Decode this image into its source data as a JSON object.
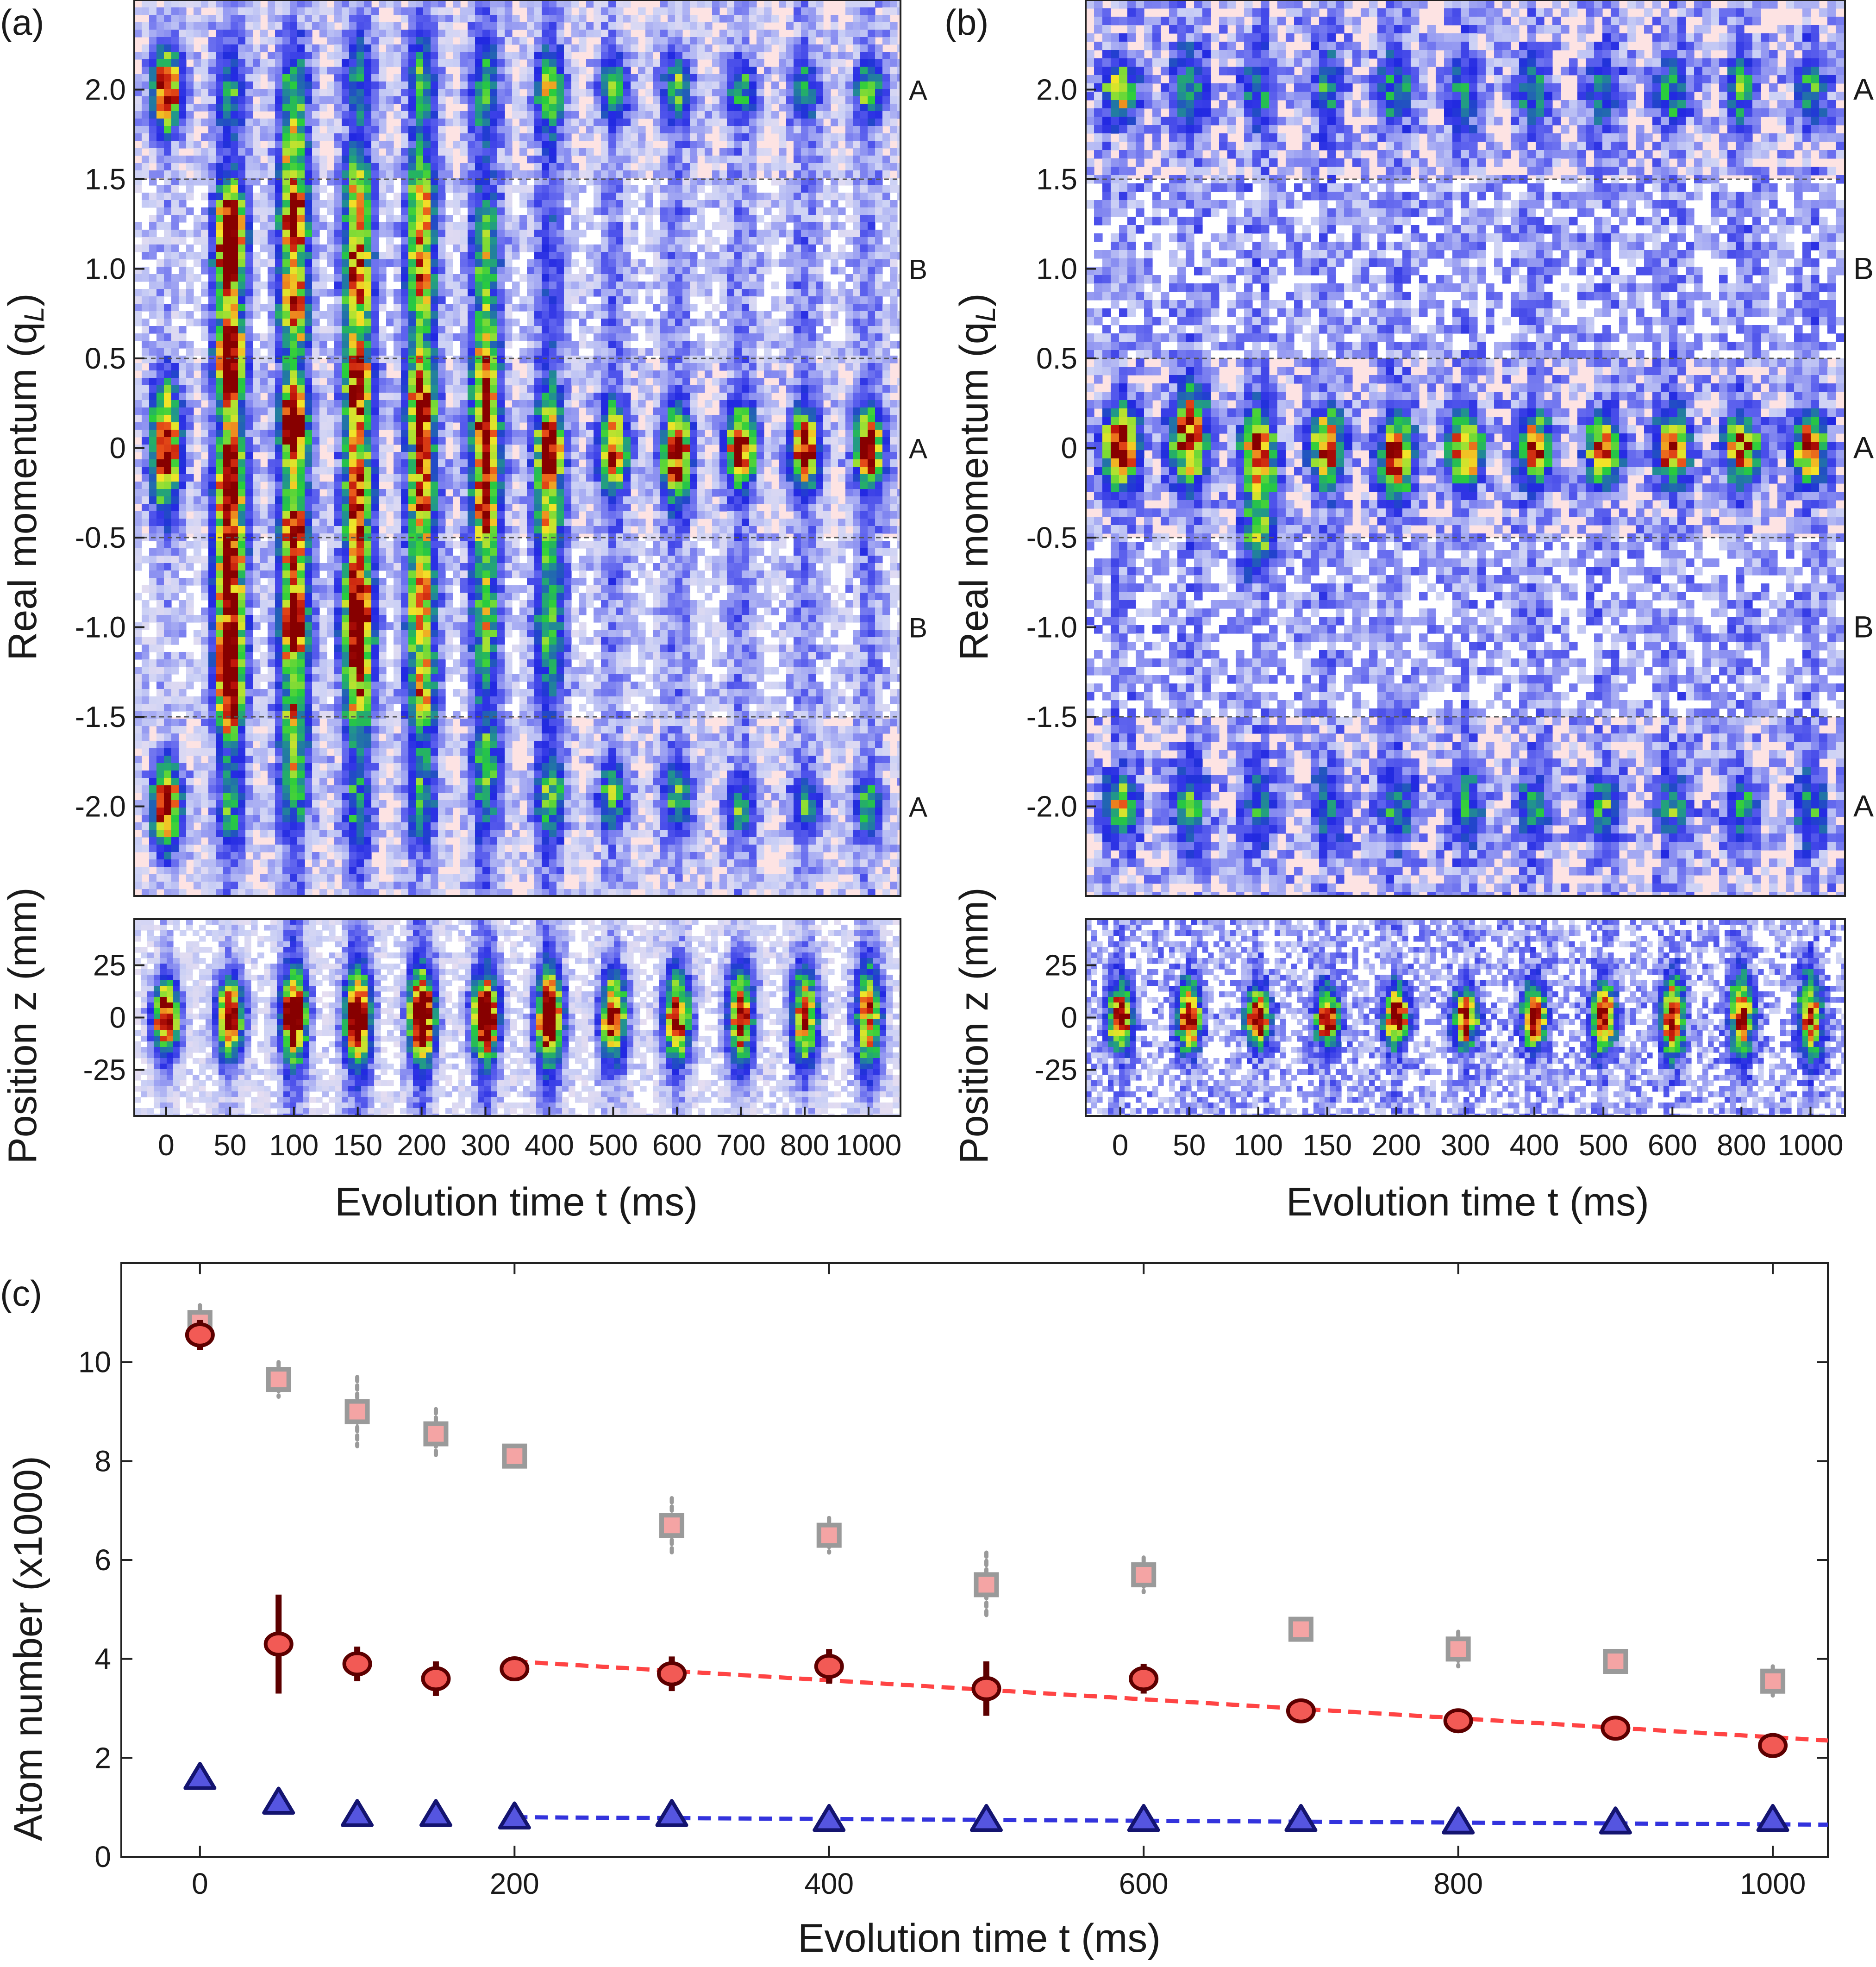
{
  "panels": {
    "a": {
      "label": "(a)"
    },
    "b": {
      "label": "(b)"
    },
    "c": {
      "label": "(c)"
    }
  },
  "labels": {
    "momentum_axis": "Real momentum (q",
    "momentum_sub": "L",
    "momentum_close": ")",
    "position_axis": "Position z (mm)",
    "evolution_axis": "Evolution time t (ms)",
    "atom_axis": "Atom number (x1000)"
  },
  "colors": {
    "red_fit": "#ff4444",
    "blue_fit": "#3333dd",
    "red_marker": "#f25a55",
    "red_edge": "#5c0000",
    "blue_marker": "#5555e0",
    "blue_edge": "#141470",
    "gray_marker": "#9a9a9a",
    "cloud_blue": "#2a2ee6",
    "cloud_green": "#22cc33",
    "cloud_yellow": "#f2e626",
    "cloud_red": "#e63317",
    "cloud_dark": "#8b0000",
    "band_pink": "#fde3e3"
  },
  "chart_data": [
    {
      "id": "a-momentum",
      "type": "heatmap",
      "panel": "(a)",
      "ylabel": "Real momentum (q_L)",
      "ylim": [
        -2.5,
        2.5
      ],
      "yticks": [
        -2.0,
        -1.5,
        -1.0,
        -0.5,
        0,
        0.5,
        1.0,
        1.5,
        2.0
      ],
      "ytick_labels": [
        "-2.0",
        "-1.5",
        "-1.0",
        "-0.5",
        "0",
        "0.5",
        "1.0",
        "1.5",
        "2.0"
      ],
      "dashed_lines": [
        -1.5,
        -0.5,
        0.5,
        1.5
      ],
      "region_labels": [
        {
          "q": 2.0,
          "text": "A"
        },
        {
          "q": 1.0,
          "text": "B"
        },
        {
          "q": 0,
          "text": "A"
        },
        {
          "q": -1.0,
          "text": "B"
        },
        {
          "q": -2.0,
          "text": "A"
        }
      ],
      "columns": [
        "0",
        "50",
        "100",
        "150",
        "200",
        "300",
        "400",
        "500",
        "600",
        "700",
        "800",
        "1000"
      ],
      "peaks": [
        [
          [
            0,
            1.0,
            0.42
          ],
          [
            2,
            1.0,
            0.28
          ],
          [
            -2,
            1.0,
            0.28
          ]
        ],
        [
          [
            1.05,
            0.8,
            0.3
          ],
          [
            0.5,
            0.9,
            0.3
          ],
          [
            -0.2,
            0.75,
            0.4
          ],
          [
            -0.7,
            0.7,
            0.35
          ],
          [
            -1.15,
            0.8,
            0.3
          ],
          [
            1.3,
            0.6,
            0.25
          ],
          [
            -1.45,
            0.6,
            0.25
          ],
          [
            2.0,
            0.3,
            0.3
          ],
          [
            -2.0,
            0.3,
            0.3
          ]
        ],
        [
          [
            1.25,
            0.7,
            0.25
          ],
          [
            0.8,
            0.65,
            0.3
          ],
          [
            0.12,
            0.95,
            0.28
          ],
          [
            -0.5,
            0.7,
            0.32
          ],
          [
            -1.0,
            0.95,
            0.25
          ],
          [
            1.6,
            0.45,
            0.3
          ],
          [
            -1.5,
            0.45,
            0.3
          ],
          [
            2.0,
            0.35,
            0.3
          ],
          [
            -1.9,
            0.35,
            0.3
          ]
        ],
        [
          [
            1.4,
            0.55,
            0.3
          ],
          [
            0.95,
            0.6,
            0.35
          ],
          [
            0.35,
            0.65,
            0.35
          ],
          [
            -0.25,
            0.6,
            0.35
          ],
          [
            -0.8,
            0.6,
            0.35
          ],
          [
            -1.05,
            0.7,
            0.25
          ],
          [
            -1.4,
            0.5,
            0.3
          ],
          [
            2.05,
            0.3,
            0.3
          ],
          [
            -2.0,
            0.3,
            0.3
          ]
        ],
        [
          [
            1.4,
            0.5,
            0.3
          ],
          [
            0.95,
            0.55,
            0.35
          ],
          [
            0.25,
            0.7,
            0.35
          ],
          [
            -0.25,
            0.6,
            0.3
          ],
          [
            -0.85,
            0.55,
            0.35
          ],
          [
            -1.35,
            0.5,
            0.3
          ],
          [
            2.05,
            0.35,
            0.3
          ],
          [
            -1.95,
            0.35,
            0.3
          ]
        ],
        [
          [
            0.05,
            0.7,
            0.4
          ],
          [
            -0.4,
            0.45,
            0.35
          ],
          [
            0.5,
            0.4,
            0.35
          ],
          [
            -1.0,
            0.35,
            0.4
          ],
          [
            1.1,
            0.35,
            0.4
          ],
          [
            -1.8,
            0.35,
            0.35
          ],
          [
            2.0,
            0.35,
            0.3
          ]
        ],
        [
          [
            0.0,
            0.75,
            0.3
          ],
          [
            -0.4,
            0.35,
            0.3
          ],
          [
            2.0,
            0.45,
            0.25
          ],
          [
            -1.95,
            0.45,
            0.25
          ],
          [
            -1.0,
            0.3,
            0.5
          ]
        ],
        [
          [
            0.0,
            0.8,
            0.28
          ],
          [
            2.0,
            0.45,
            0.22
          ],
          [
            -1.95,
            0.45,
            0.22
          ]
        ],
        [
          [
            -0.05,
            0.85,
            0.3
          ],
          [
            2.0,
            0.45,
            0.22
          ],
          [
            -1.95,
            0.45,
            0.22
          ]
        ],
        [
          [
            0.0,
            0.85,
            0.25
          ],
          [
            2.0,
            0.4,
            0.2
          ],
          [
            -2.0,
            0.4,
            0.2
          ]
        ],
        [
          [
            0.0,
            0.85,
            0.25
          ],
          [
            2.0,
            0.4,
            0.2
          ],
          [
            -2.0,
            0.4,
            0.2
          ]
        ],
        [
          [
            0.0,
            0.9,
            0.25
          ],
          [
            2.0,
            0.5,
            0.2
          ],
          [
            -2.0,
            0.45,
            0.2
          ]
        ]
      ]
    },
    {
      "id": "a-position",
      "type": "heatmap",
      "panel": "(a)",
      "xlabel": "Evolution time t (ms)",
      "ylabel": "Position z (mm)",
      "ylim": [
        -47,
        47
      ],
      "yticks": [
        -25,
        0,
        25
      ],
      "ytick_labels": [
        "-25",
        "0",
        "25"
      ],
      "columns": [
        "0",
        "50",
        "100",
        "150",
        "200",
        "300",
        "400",
        "500",
        "600",
        "700",
        "800",
        "1000"
      ],
      "peak_strength": [
        1.0,
        1.0,
        1.0,
        1.0,
        1.0,
        0.97,
        0.93,
        0.88,
        0.83,
        0.78,
        0.75,
        0.72
      ],
      "peak_width": [
        11,
        12,
        12,
        13,
        13,
        12,
        13,
        14,
        15,
        16,
        16,
        17
      ]
    },
    {
      "id": "b-momentum",
      "type": "heatmap",
      "panel": "(b)",
      "ylabel": "Real momentum (q_L)",
      "ylim": [
        -2.5,
        2.5
      ],
      "yticks": [
        -2.0,
        -1.5,
        -1.0,
        -0.5,
        0,
        0.5,
        1.0,
        1.5,
        2.0
      ],
      "ytick_labels": [
        "-2.0",
        "-1.5",
        "-1.0",
        "-0.5",
        "0",
        "0.5",
        "1.0",
        "1.5",
        "2.0"
      ],
      "dashed_lines": [
        -1.5,
        -0.5,
        0.5,
        1.5
      ],
      "region_labels": [
        {
          "q": 2.0,
          "text": "A"
        },
        {
          "q": 1.0,
          "text": "B"
        },
        {
          "q": 0,
          "text": "A"
        },
        {
          "q": -1.0,
          "text": "B"
        },
        {
          "q": -2.0,
          "text": "A"
        }
      ],
      "columns": [
        "0",
        "50",
        "100",
        "150",
        "200",
        "300",
        "400",
        "500",
        "600",
        "800",
        "1000"
      ],
      "peaks": [
        [
          [
            0,
            1.0,
            0.3
          ],
          [
            2,
            0.6,
            0.22
          ],
          [
            -2,
            0.6,
            0.22
          ]
        ],
        [
          [
            0.05,
            0.85,
            0.38
          ],
          [
            2,
            0.4,
            0.3
          ],
          [
            -2,
            0.4,
            0.3
          ]
        ],
        [
          [
            -0.05,
            0.8,
            0.38
          ],
          [
            -0.5,
            0.35,
            0.3
          ],
          [
            2,
            0.3,
            0.3
          ],
          [
            -2,
            0.3,
            0.3
          ]
        ],
        [
          [
            0,
            0.8,
            0.28
          ],
          [
            2,
            0.3,
            0.3
          ],
          [
            -2,
            0.3,
            0.3
          ]
        ],
        [
          [
            -0.05,
            0.8,
            0.3
          ],
          [
            2,
            0.3,
            0.3
          ],
          [
            -2,
            0.3,
            0.3
          ]
        ],
        [
          [
            0,
            0.8,
            0.28
          ],
          [
            2,
            0.3,
            0.3
          ],
          [
            -2,
            0.3,
            0.3
          ]
        ],
        [
          [
            0,
            0.8,
            0.25
          ],
          [
            2,
            0.35,
            0.25
          ],
          [
            -2,
            0.35,
            0.25
          ]
        ],
        [
          [
            0,
            0.8,
            0.25
          ],
          [
            2,
            0.35,
            0.25
          ],
          [
            -2,
            0.35,
            0.25
          ]
        ],
        [
          [
            0,
            0.8,
            0.25
          ],
          [
            2,
            0.35,
            0.25
          ],
          [
            -2,
            0.35,
            0.25
          ]
        ],
        [
          [
            0,
            0.8,
            0.25
          ],
          [
            2,
            0.35,
            0.25
          ],
          [
            -2,
            0.35,
            0.25
          ]
        ],
        [
          [
            0,
            0.8,
            0.25
          ],
          [
            2,
            0.35,
            0.25
          ],
          [
            -2,
            0.35,
            0.25
          ]
        ]
      ]
    },
    {
      "id": "b-position",
      "type": "heatmap",
      "panel": "(b)",
      "xlabel": "Evolution time t (ms)",
      "ylabel": "Position z (mm)",
      "ylim": [
        -47,
        47
      ],
      "yticks": [
        -25,
        0,
        25
      ],
      "ytick_labels": [
        "-25",
        "0",
        "25"
      ],
      "columns": [
        "0",
        "50",
        "100",
        "150",
        "200",
        "300",
        "400",
        "500",
        "600",
        "800",
        "1000"
      ],
      "peak_strength": [
        1.0,
        1.0,
        0.95,
        0.95,
        0.95,
        0.93,
        0.92,
        0.9,
        0.88,
        0.82,
        0.75
      ],
      "peak_width": [
        10,
        10,
        9,
        9,
        9,
        9,
        10,
        11,
        12,
        13,
        14
      ]
    },
    {
      "id": "c-atom-number",
      "type": "scatter",
      "panel": "(c)",
      "xlabel": "Evolution time t (ms)",
      "ylabel": "Atom number (x1000)",
      "xlim": [
        -50,
        1035
      ],
      "ylim": [
        0,
        12
      ],
      "xticks": [
        0,
        200,
        400,
        600,
        800,
        1000
      ],
      "yticks": [
        0,
        2,
        4,
        6,
        8,
        10
      ],
      "series": [
        {
          "name": "gray squares",
          "marker": "square",
          "x": [
            0,
            50,
            100,
            150,
            200,
            300,
            400,
            500,
            600,
            700,
            800,
            900,
            1000
          ],
          "y": [
            10.8,
            9.65,
            9.0,
            8.55,
            8.1,
            6.7,
            6.5,
            5.5,
            5.7,
            4.6,
            4.2,
            3.95,
            3.55
          ],
          "err": [
            0.35,
            0.35,
            0.7,
            0.5,
            0.2,
            0.55,
            0.35,
            0.65,
            0.35,
            0.2,
            0.35,
            0.1,
            0.3
          ]
        },
        {
          "name": "red circles",
          "marker": "circle",
          "x": [
            0,
            50,
            100,
            150,
            200,
            300,
            400,
            500,
            600,
            700,
            800,
            900,
            1000
          ],
          "y": [
            10.55,
            4.3,
            3.9,
            3.6,
            3.8,
            3.7,
            3.85,
            3.4,
            3.6,
            2.95,
            2.75,
            2.6,
            2.25
          ],
          "err": [
            0.3,
            1.0,
            0.35,
            0.35,
            0.1,
            0.35,
            0.35,
            0.55,
            0.3,
            0.1,
            0.2,
            0.1,
            0.2
          ]
        },
        {
          "name": "blue triangles",
          "marker": "triangle",
          "x": [
            0,
            50,
            100,
            150,
            200,
            300,
            400,
            500,
            600,
            700,
            800,
            900,
            1000
          ],
          "y": [
            1.6,
            1.1,
            0.85,
            0.85,
            0.8,
            0.85,
            0.75,
            0.75,
            0.75,
            0.75,
            0.7,
            0.7,
            0.75
          ],
          "err": [
            0.1,
            0.15,
            0.1,
            0.1,
            0.08,
            0.08,
            0.08,
            0.08,
            0.08,
            0.08,
            0.08,
            0.08,
            0.08
          ]
        }
      ],
      "fits": [
        {
          "name": "red fit",
          "x": [
            200,
            1035
          ],
          "y": [
            3.95,
            2.35
          ]
        },
        {
          "name": "blue fit",
          "x": [
            200,
            1035
          ],
          "y": [
            0.8,
            0.65
          ]
        }
      ]
    }
  ]
}
